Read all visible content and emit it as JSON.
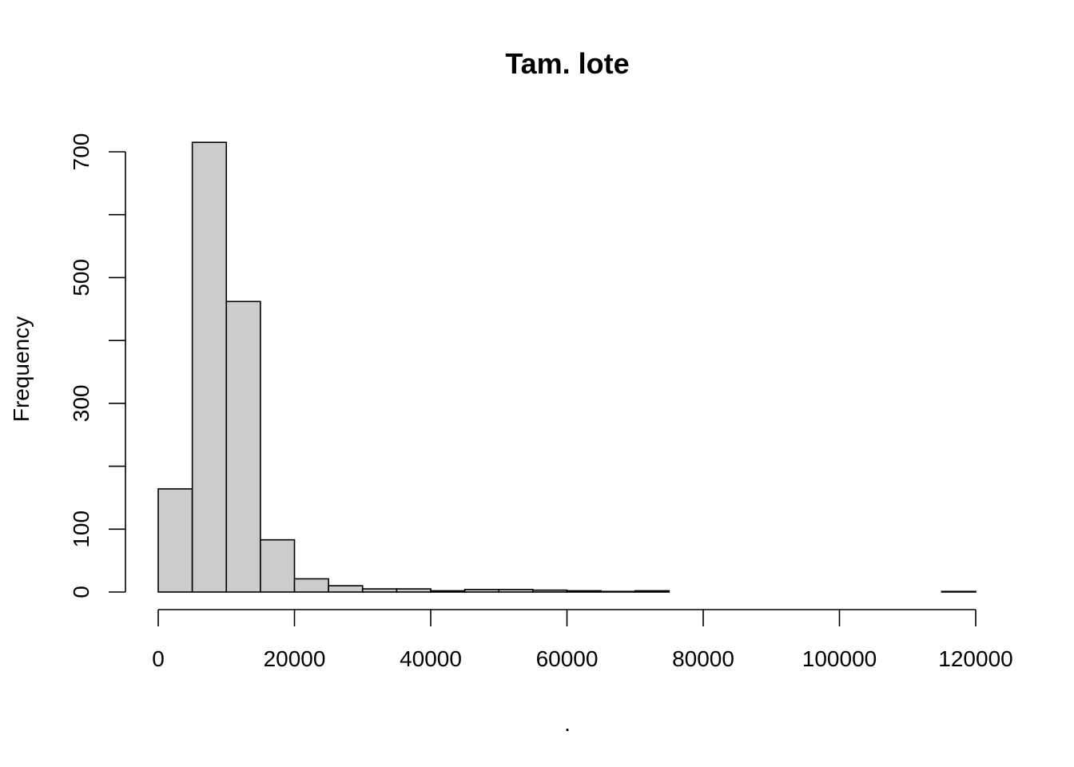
{
  "chart_data": {
    "type": "bar",
    "title": "Tam. lote",
    "xlabel": ".",
    "ylabel": "Frequency",
    "bin_width": 5000,
    "bin_starts": [
      0,
      5000,
      10000,
      15000,
      20000,
      25000,
      30000,
      35000,
      40000,
      45000,
      50000,
      55000,
      60000,
      65000,
      70000,
      75000,
      80000,
      85000,
      90000,
      95000,
      100000,
      105000,
      110000,
      115000
    ],
    "values": [
      164,
      715,
      462,
      83,
      21,
      10,
      5,
      5,
      2,
      4,
      4,
      3,
      2,
      1,
      2,
      0,
      0,
      0,
      0,
      0,
      0,
      0,
      0,
      1
    ],
    "xlim": [
      0,
      120000
    ],
    "ylim": [
      0,
      700
    ],
    "x_ticks": [
      0,
      20000,
      40000,
      60000,
      80000,
      100000,
      120000
    ],
    "x_tick_labels": [
      "0",
      "20000",
      "40000",
      "60000",
      "80000",
      "100000",
      "120000"
    ],
    "y_ticks": [
      0,
      100,
      200,
      300,
      400,
      500,
      600,
      700
    ],
    "y_tick_labels": [
      "0",
      "100",
      "300",
      "500",
      "700"
    ],
    "y_labeled_ticks": [
      0,
      100,
      300,
      500,
      700
    ],
    "grid": false,
    "legend": "none",
    "colors": {
      "bar_fill": "#cccccc",
      "bar_stroke": "#000000"
    }
  }
}
